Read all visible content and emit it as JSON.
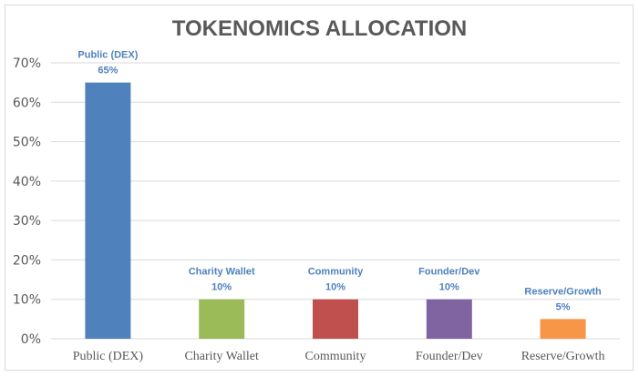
{
  "chart_data": {
    "type": "bar",
    "title": "TOKENOMICS ALLOCATION",
    "categories": [
      "Public (DEX)",
      "Charity Wallet",
      "Community",
      "Founder/Dev",
      "Reserve/Growth"
    ],
    "values": [
      65,
      10,
      10,
      10,
      5
    ],
    "data_labels": [
      "65%",
      "10%",
      "10%",
      "10%",
      "5%"
    ],
    "colors": [
      "#4f81bd",
      "#9bbb59",
      "#c0504d",
      "#8064a2",
      "#f79646"
    ],
    "yticks": [
      "0%",
      "10%",
      "20%",
      "30%",
      "40%",
      "50%",
      "60%",
      "70%"
    ],
    "ylim": [
      0,
      70
    ],
    "grid": true,
    "legend": "none",
    "xlabel": "",
    "ylabel": ""
  }
}
